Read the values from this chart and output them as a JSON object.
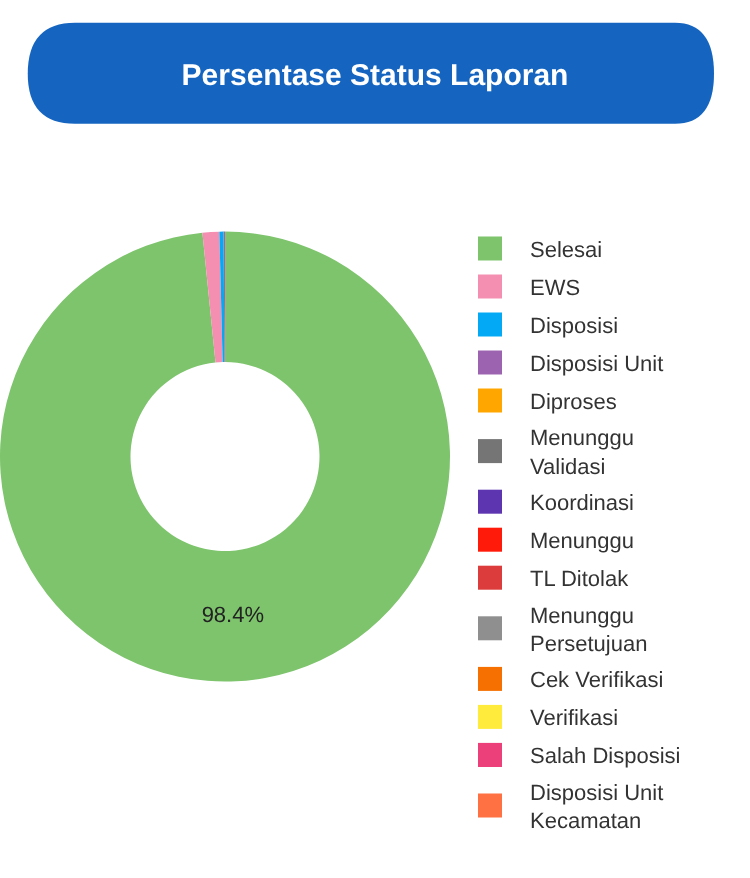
{
  "chart_data": {
    "type": "donut",
    "title": "Persentase Status Laporan",
    "categories": [
      "Selesai",
      "EWS",
      "Disposisi",
      "Disposisi Unit",
      "Diproses",
      "Menunggu Validasi",
      "Koordinasi",
      "Menunggu",
      "TL Ditolak",
      "Menunggu Persetujuan",
      "Cek Verifikasi",
      "Verifikasi",
      "Salah Disposisi",
      "Disposisi Unit Kecamatan"
    ],
    "values": [
      98.4,
      1.2,
      0.3,
      0.1,
      0,
      0,
      0,
      0,
      0,
      0,
      0,
      0,
      0,
      0
    ],
    "colors": [
      "#7dc46c",
      "#f48fb1",
      "#03a9f4",
      "#9c64b0",
      "#ffa600",
      "#757575",
      "#5e35b1",
      "#ff1a0a",
      "#dc3c3c",
      "#8f8f8f",
      "#f57000",
      "#ffeb3b",
      "#ec407a",
      "#ff7043"
    ],
    "value_labels": [
      "98.4%",
      null,
      null,
      null,
      null,
      null,
      null,
      null,
      null,
      null,
      null,
      null,
      null,
      null
    ],
    "legend": "right"
  }
}
